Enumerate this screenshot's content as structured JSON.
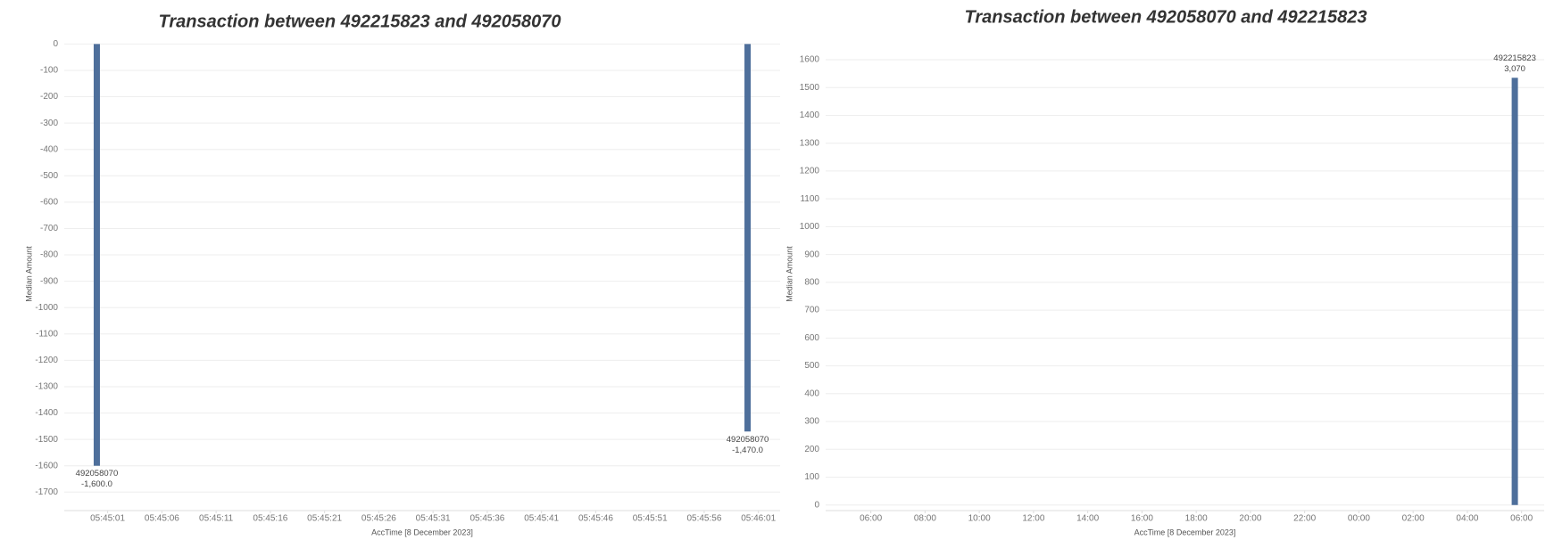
{
  "chart_data": [
    {
      "type": "bar",
      "title": "Transaction between 492215823 and 492058070",
      "x_label": "AccTime [8 December 2023]",
      "y_label": "Median Amount",
      "x": [
        "05:45:00",
        "05:46:00"
      ],
      "values": [
        -1600,
        -1470
      ],
      "value_labels": [
        "-1,600.0",
        "-1,470.0"
      ],
      "point_labels": [
        "492058070",
        "492058070"
      ],
      "color": "#4e6f9b",
      "xlim": [
        "05:44:57",
        "05:46:03"
      ],
      "xticks": [
        "05:45:01",
        "05:45:06",
        "05:45:11",
        "05:45:16",
        "05:45:21",
        "05:45:26",
        "05:45:31",
        "05:45:36",
        "05:45:41",
        "05:45:46",
        "05:45:51",
        "05:45:56",
        "05:46:01"
      ],
      "ylim": [
        -1770,
        25
      ],
      "yticks": [
        0,
        -100,
        -200,
        -300,
        -400,
        -500,
        -600,
        -700,
        -800,
        -900,
        -1000,
        -1100,
        -1200,
        -1300,
        -1400,
        -1500,
        -1600,
        -1700
      ],
      "grid": true
    },
    {
      "type": "bar",
      "title": "Transaction between 492058070 and 492215823",
      "x_label": "AccTime [8 December 2023]",
      "y_label": "Median Amount",
      "x": [
        "05:45"
      ],
      "values": [
        1535
      ],
      "annotations": [
        "3,070"
      ],
      "point_labels": [
        "492215823"
      ],
      "color": "#4e6f9b",
      "xlim": [
        "04:20",
        "06:50"
      ],
      "xticks": [
        "06:00",
        "08:00",
        "10:00",
        "12:00",
        "14:00",
        "16:00",
        "18:00",
        "20:00",
        "22:00",
        "00:00",
        "02:00",
        "04:00",
        "06:00"
      ],
      "ylim": [
        -20,
        1680
      ],
      "yticks": [
        0,
        100,
        200,
        300,
        400,
        500,
        600,
        700,
        800,
        900,
        1000,
        1100,
        1200,
        1300,
        1400,
        1500,
        1600
      ],
      "grid": true
    }
  ]
}
